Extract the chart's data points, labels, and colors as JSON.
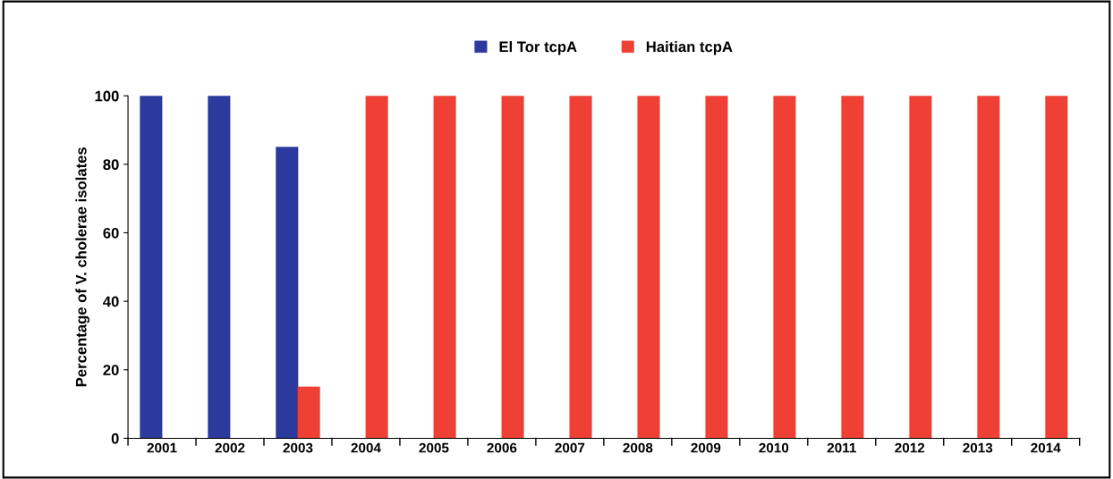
{
  "chart_data": {
    "type": "bar",
    "ylabel": "Percentage of V. cholerae isolates",
    "categories": [
      "2001",
      "2002",
      "2003",
      "2004",
      "2005",
      "2006",
      "2007",
      "2008",
      "2009",
      "2010",
      "2011",
      "2012",
      "2013",
      "2014"
    ],
    "series": [
      {
        "name": "El Tor tcpA",
        "color": "#2b3a9c",
        "values": [
          100,
          100,
          85,
          null,
          null,
          null,
          null,
          null,
          null,
          null,
          null,
          null,
          null,
          null
        ]
      },
      {
        "name": "Haitian tcpA",
        "color": "#ee4035",
        "values": [
          null,
          null,
          15,
          100,
          100,
          100,
          100,
          100,
          100,
          100,
          100,
          100,
          100,
          100
        ]
      }
    ],
    "ylim": [
      0,
      100
    ],
    "yticks": [
      0,
      20,
      40,
      60,
      80,
      100
    ],
    "grid": false,
    "legend": "top"
  }
}
